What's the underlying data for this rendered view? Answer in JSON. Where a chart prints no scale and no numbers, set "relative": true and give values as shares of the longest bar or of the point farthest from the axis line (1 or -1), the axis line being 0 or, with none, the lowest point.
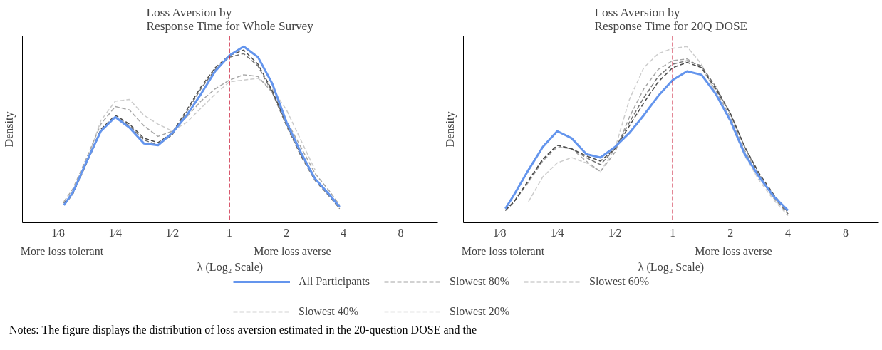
{
  "chart_data": [
    {
      "type": "line",
      "title": "Loss Aversion by\nResponse Time for Whole Survey",
      "xlabel": "λ (Log₂ Scale)",
      "ylabel": "Density",
      "relative": true,
      "legend": "bottom",
      "grid": false,
      "log": "x",
      "xlim": [
        0.081,
        12.55
      ],
      "xticks": [
        {
          "value": 0.125,
          "label": "1⁄8"
        },
        {
          "value": 0.25,
          "label": "1⁄4"
        },
        {
          "value": 0.5,
          "label": "1⁄2"
        },
        1,
        2,
        4,
        8
      ],
      "x": [
        0.134,
        0.149,
        0.177,
        0.21,
        0.25,
        0.297,
        0.354,
        0.42,
        0.5,
        0.595,
        0.707,
        0.841,
        1,
        1.189,
        1.414,
        1.682,
        2,
        2.378,
        2.828,
        3.364,
        3.81
      ],
      "series": [
        {
          "name": "Slowest 20%",
          "color": "#cccccc",
          "line_style": "dashed",
          "values": [
            0.1,
            0.16,
            0.35,
            0.58,
            0.69,
            0.7,
            0.61,
            0.56,
            0.52,
            0.57,
            0.65,
            0.73,
            0.8,
            0.81,
            0.82,
            0.76,
            0.64,
            0.47,
            0.3,
            null,
            null
          ]
        },
        {
          "name": "Slowest 40%",
          "color": "#a6a6a6",
          "line_style": "dashed",
          "values": [
            0.12,
            0.19,
            0.37,
            0.56,
            0.66,
            0.64,
            0.55,
            0.49,
            0.52,
            0.6,
            0.69,
            0.76,
            0.81,
            0.84,
            0.83,
            0.74,
            0.58,
            0.43,
            0.28,
            0.18,
            0.1
          ]
        },
        {
          "name": "Slowest 60%",
          "color": "#737373",
          "line_style": "dashed",
          "values": [
            0.1,
            0.16,
            0.34,
            0.52,
            0.6,
            0.55,
            0.47,
            0.44,
            0.5,
            0.63,
            0.76,
            0.87,
            0.94,
            0.96,
            0.89,
            0.74,
            0.55,
            0.38,
            0.24,
            0.15,
            0.08
          ]
        },
        {
          "name": "Slowest 80%",
          "color": "#4d4d4d",
          "line_style": "dashed",
          "values": [
            0.11,
            0.17,
            0.35,
            0.53,
            0.61,
            0.56,
            0.48,
            0.455,
            0.51,
            0.64,
            0.77,
            0.88,
            0.95,
            0.98,
            0.9,
            0.75,
            0.56,
            0.39,
            0.25,
            0.16,
            0.09
          ]
        },
        {
          "name": "All Participants",
          "color": "#6495ed",
          "line_style": "solid",
          "values": [
            0.1,
            0.17,
            0.35,
            0.52,
            0.6,
            0.54,
            0.45,
            0.44,
            0.51,
            0.61,
            0.73,
            0.86,
            0.95,
            1.0,
            0.94,
            0.79,
            0.57,
            0.4,
            0.25,
            0.16,
            0.09
          ]
        }
      ],
      "ref_lines": [
        {
          "axis": "x",
          "value": 1,
          "color": "#c8102e",
          "line_style": "dashed"
        }
      ],
      "annotations": [
        "More loss tolerant",
        "More loss averse",
        "Notes: The figure displays the distribution of loss aversion estimated in the 20-question DOSE and the"
      ]
    },
    {
      "type": "line",
      "title": "Loss Aversion by\nResponse Time for 20Q DOSE",
      "xlabel": "λ (Log₂ Scale)",
      "ylabel": "Density",
      "relative": true,
      "grid": false,
      "log": "x",
      "xlim": [
        0.081,
        11.9
      ],
      "xticks": [
        {
          "value": 0.125,
          "label": "1⁄8"
        },
        {
          "value": 0.25,
          "label": "1⁄4"
        },
        {
          "value": 0.5,
          "label": "1⁄2"
        },
        1,
        2,
        4,
        8
      ],
      "x": [
        0.134,
        0.149,
        0.177,
        0.21,
        0.25,
        0.297,
        0.354,
        0.42,
        0.5,
        0.595,
        0.707,
        0.841,
        1,
        1.189,
        1.414,
        1.682,
        2,
        2.378,
        2.828,
        3.364,
        4
      ],
      "series": [
        {
          "color": "#cccccc",
          "line_style": "dashed",
          "values": [
            null,
            null,
            0.12,
            0.26,
            0.34,
            0.37,
            0.34,
            0.29,
            0.42,
            0.7,
            0.88,
            0.96,
            0.99,
            1.0,
            0.9,
            0.73,
            0.57,
            0.38,
            0.24,
            0.13,
            0.04
          ]
        },
        {
          "color": "#a6a6a6",
          "line_style": "dashed",
          "values": [
            0.07,
            0.12,
            0.23,
            0.35,
            0.43,
            0.42,
            0.35,
            0.29,
            0.4,
            0.6,
            0.76,
            0.87,
            0.92,
            0.93,
            0.88,
            0.75,
            0.6,
            0.41,
            0.26,
            0.14,
            0.05
          ]
        },
        {
          "color": "#737373",
          "line_style": "dashed",
          "values": [
            0.07,
            0.12,
            0.24,
            0.36,
            0.44,
            0.42,
            0.37,
            0.33,
            0.42,
            0.57,
            0.71,
            0.83,
            0.9,
            0.92,
            0.89,
            0.77,
            0.62,
            0.43,
            0.27,
            0.15,
            0.05
          ]
        },
        {
          "color": "#4d4d4d",
          "line_style": "dashed",
          "values": [
            0.07,
            0.12,
            0.24,
            0.36,
            0.44,
            0.42,
            0.38,
            0.35,
            0.42,
            0.55,
            0.68,
            0.8,
            0.88,
            0.91,
            0.88,
            0.76,
            0.62,
            0.43,
            0.28,
            0.16,
            0.06
          ]
        },
        {
          "color": "#6495ed",
          "line_style": "solid",
          "values": [
            0.08,
            0.16,
            0.3,
            0.43,
            0.52,
            0.48,
            0.39,
            0.37,
            0.43,
            0.51,
            0.61,
            0.72,
            0.81,
            0.86,
            0.84,
            0.73,
            0.58,
            0.39,
            0.26,
            0.15,
            0.07
          ]
        }
      ],
      "ref_lines": [
        {
          "axis": "x",
          "value": 1,
          "color": "#c8102e",
          "line_style": "dashed"
        }
      ],
      "annotations": [
        "More loss tolerant",
        "More loss averse"
      ]
    }
  ]
}
